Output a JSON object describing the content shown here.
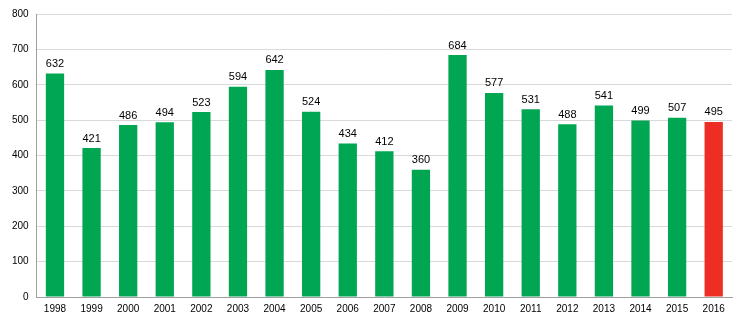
{
  "chart_data": {
    "type": "bar",
    "categories": [
      "1998",
      "1999",
      "2000",
      "2001",
      "2002",
      "2003",
      "2004",
      "2005",
      "2006",
      "2007",
      "2008",
      "2009",
      "2010",
      "2011",
      "2012",
      "2013",
      "2014",
      "2015",
      "2016"
    ],
    "values": [
      632,
      421,
      486,
      494,
      523,
      594,
      642,
      524,
      434,
      412,
      360,
      684,
      577,
      531,
      488,
      541,
      499,
      507,
      495
    ],
    "colors": [
      "#00a651",
      "#00a651",
      "#00a651",
      "#00a651",
      "#00a651",
      "#00a651",
      "#00a651",
      "#00a651",
      "#00a651",
      "#00a651",
      "#00a651",
      "#00a651",
      "#00a651",
      "#00a651",
      "#00a651",
      "#00a651",
      "#00a651",
      "#00a651",
      "#ee2d24"
    ],
    "ylim": [
      0,
      800
    ],
    "yticks": [
      0,
      100,
      200,
      300,
      400,
      500,
      600,
      700,
      800
    ],
    "grid": true,
    "data_labels": true
  }
}
